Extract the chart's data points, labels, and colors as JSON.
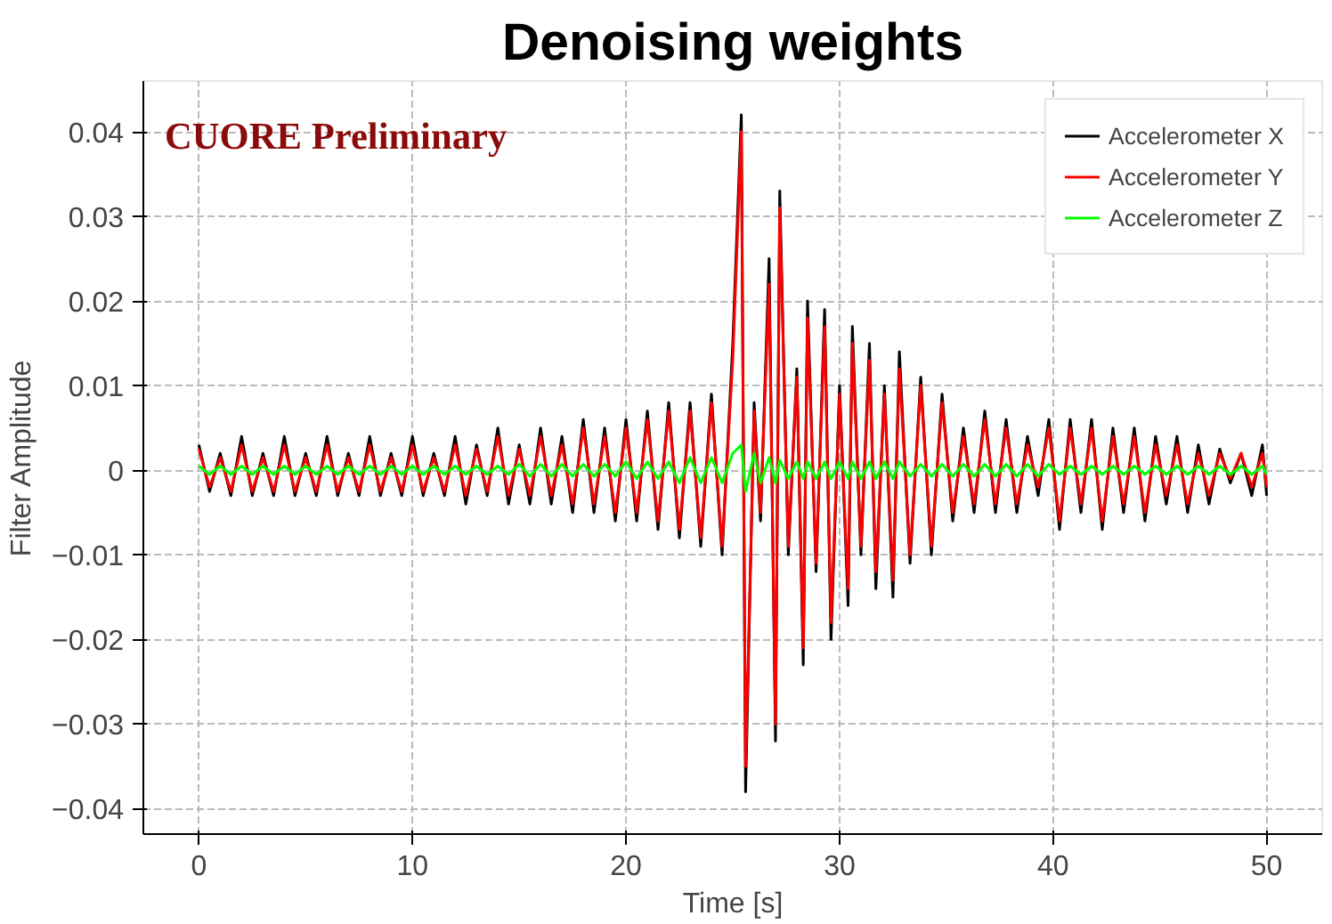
{
  "chart_data": {
    "type": "line",
    "title": "Denoising weights",
    "xlabel": "Time [s]",
    "ylabel": "Filter Amplitude",
    "annotations": [
      "CUORE Preliminary"
    ],
    "x": [
      0,
      0.5,
      1,
      1.5,
      2,
      2.5,
      3,
      3.5,
      4,
      4.5,
      5,
      5.5,
      6,
      6.5,
      7,
      7.5,
      8,
      8.5,
      9,
      9.5,
      10,
      10.5,
      11,
      11.5,
      12,
      12.5,
      13,
      13.5,
      14,
      14.5,
      15,
      15.5,
      16,
      16.5,
      17,
      17.5,
      18,
      18.5,
      19,
      19.5,
      20,
      20.5,
      21,
      21.5,
      22,
      22.5,
      23,
      23.5,
      24,
      24.5,
      25.0,
      25.4,
      25.6,
      26.0,
      26.3,
      26.7,
      27.0,
      27.2,
      27.6,
      28.0,
      28.3,
      28.5,
      28.9,
      29.3,
      29.6,
      30.0,
      30.4,
      30.6,
      31.0,
      31.4,
      31.7,
      32.1,
      32.5,
      32.8,
      33.3,
      33.8,
      34.3,
      34.8,
      35.3,
      35.8,
      36.3,
      36.8,
      37.3,
      37.8,
      38.3,
      38.8,
      39.3,
      39.8,
      40.3,
      40.8,
      41.3,
      41.8,
      42.3,
      42.8,
      43.3,
      43.8,
      44.3,
      44.8,
      45.3,
      45.8,
      46.3,
      46.8,
      47.3,
      47.8,
      48.3,
      48.8,
      49.3,
      49.8,
      50.0
    ],
    "series": [
      {
        "name": "Accelerometer X",
        "color": "#000000",
        "values": [
          0.003,
          -0.0025,
          0.002,
          -0.003,
          0.004,
          -0.003,
          0.002,
          -0.003,
          0.004,
          -0.003,
          0.002,
          -0.003,
          0.004,
          -0.003,
          0.002,
          -0.003,
          0.004,
          -0.003,
          0.002,
          -0.003,
          0.004,
          -0.003,
          0.002,
          -0.003,
          0.004,
          -0.004,
          0.003,
          -0.003,
          0.005,
          -0.004,
          0.003,
          -0.004,
          0.005,
          -0.004,
          0.004,
          -0.005,
          0.006,
          -0.005,
          0.005,
          -0.006,
          0.006,
          -0.006,
          0.007,
          -0.007,
          0.008,
          -0.008,
          0.008,
          -0.009,
          0.009,
          -0.01,
          0.015,
          0.042,
          -0.038,
          0.008,
          -0.006,
          0.025,
          -0.032,
          0.033,
          -0.01,
          0.012,
          -0.023,
          0.02,
          -0.012,
          0.019,
          -0.02,
          0.01,
          -0.016,
          0.017,
          -0.01,
          0.015,
          -0.014,
          0.01,
          -0.015,
          0.014,
          -0.011,
          0.011,
          -0.01,
          0.009,
          -0.006,
          0.005,
          -0.005,
          0.007,
          -0.005,
          0.006,
          -0.005,
          0.004,
          -0.003,
          0.006,
          -0.007,
          0.006,
          -0.005,
          0.006,
          -0.007,
          0.005,
          -0.005,
          0.005,
          -0.006,
          0.004,
          -0.004,
          0.004,
          -0.005,
          0.003,
          -0.004,
          0.0025,
          -0.0015,
          0.002,
          -0.003,
          0.003,
          -0.003
        ]
      },
      {
        "name": "Accelerometer Y",
        "color": "#ff0000",
        "values": [
          0.0025,
          -0.002,
          0.0015,
          -0.0025,
          0.003,
          -0.0025,
          0.0015,
          -0.0025,
          0.003,
          -0.0025,
          0.0015,
          -0.0025,
          0.003,
          -0.0025,
          0.0015,
          -0.0025,
          0.003,
          -0.0025,
          0.0015,
          -0.0025,
          0.003,
          -0.0025,
          0.0015,
          -0.0025,
          0.003,
          -0.003,
          0.0025,
          -0.0025,
          0.004,
          -0.003,
          0.0025,
          -0.003,
          0.004,
          -0.003,
          0.003,
          -0.004,
          0.005,
          -0.004,
          0.004,
          -0.005,
          0.005,
          -0.005,
          0.006,
          -0.006,
          0.007,
          -0.007,
          0.007,
          -0.008,
          0.008,
          -0.009,
          0.013,
          0.04,
          -0.035,
          0.007,
          -0.005,
          0.022,
          -0.03,
          0.031,
          -0.009,
          0.011,
          -0.021,
          0.018,
          -0.011,
          0.017,
          -0.018,
          0.009,
          -0.014,
          0.015,
          -0.009,
          0.013,
          -0.012,
          0.009,
          -0.013,
          0.012,
          -0.01,
          0.01,
          -0.009,
          0.008,
          -0.005,
          0.004,
          -0.004,
          0.006,
          -0.004,
          0.005,
          -0.004,
          0.003,
          -0.002,
          0.005,
          -0.006,
          0.005,
          -0.004,
          0.005,
          -0.006,
          0.004,
          -0.004,
          0.004,
          -0.005,
          0.003,
          -0.003,
          0.003,
          -0.004,
          0.002,
          -0.003,
          0.002,
          -0.001,
          0.002,
          -0.002,
          0.002,
          -0.002
        ]
      },
      {
        "name": "Accelerometer Z",
        "color": "#00ff00",
        "values": [
          0.0005,
          -0.0005,
          0.0005,
          -0.0005,
          0.0005,
          -0.0005,
          0.0005,
          -0.0005,
          0.0005,
          -0.0005,
          0.0005,
          -0.0005,
          0.0005,
          -0.0005,
          0.0005,
          -0.0005,
          0.0005,
          -0.0005,
          0.0005,
          -0.0005,
          0.0005,
          -0.0005,
          0.0005,
          -0.0005,
          0.0005,
          -0.0005,
          0.0005,
          -0.0005,
          0.0005,
          -0.0005,
          0.0007,
          -0.0007,
          0.0007,
          -0.0007,
          0.0007,
          -0.0007,
          0.0007,
          -0.0007,
          0.0007,
          -0.0007,
          0.001,
          -0.001,
          0.001,
          -0.001,
          0.001,
          -0.0015,
          0.0015,
          -0.0015,
          0.0015,
          -0.0015,
          0.002,
          0.003,
          -0.0025,
          0.002,
          -0.0015,
          0.0015,
          -0.0015,
          0.0012,
          -0.001,
          0.001,
          -0.001,
          0.001,
          -0.001,
          0.001,
          -0.001,
          0.001,
          -0.001,
          0.001,
          -0.001,
          0.001,
          -0.001,
          0.001,
          -0.001,
          0.001,
          -0.0007,
          0.0007,
          -0.0007,
          0.0007,
          -0.0007,
          0.0007,
          -0.0007,
          0.0007,
          -0.0007,
          0.0007,
          -0.0007,
          0.0007,
          -0.0007,
          0.0007,
          -0.0005,
          0.0005,
          -0.0005,
          0.0005,
          -0.0005,
          0.0005,
          -0.0005,
          0.0005,
          -0.0005,
          0.0005,
          -0.0005,
          0.0005,
          -0.0005,
          0.0005,
          -0.0005,
          0.0005,
          -0.0005,
          0.0005,
          -0.0005,
          0.0005,
          -0.0005
        ]
      }
    ],
    "xlim": [
      -2.6,
      52.6
    ],
    "ylim": [
      -0.043,
      0.046
    ],
    "xticks": [
      0,
      10,
      20,
      30,
      40,
      50
    ],
    "yticks": [
      {
        "value": -0.04,
        "label": "−0.04"
      },
      {
        "value": -0.03,
        "label": "−0.03"
      },
      {
        "value": -0.02,
        "label": "−0.02"
      },
      {
        "value": -0.01,
        "label": "−0.01"
      },
      0,
      0.01,
      0.02,
      0.03,
      0.04
    ],
    "grid": true,
    "legend": "top right",
    "line_style": "solid"
  }
}
